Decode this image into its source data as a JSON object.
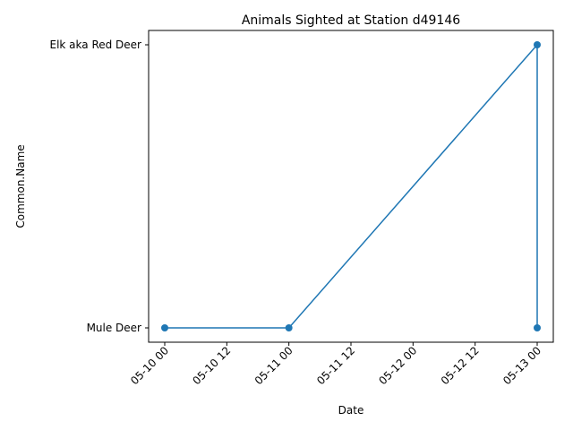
{
  "chart_data": {
    "type": "line",
    "title": "Animals Sighted at Station d49146",
    "xlabel": "Date",
    "ylabel": "Common.Name",
    "x_ticks": [
      "05-10 00",
      "05-10 12",
      "05-11 00",
      "05-11 12",
      "05-12 00",
      "05-12 12",
      "05-13 00"
    ],
    "y_categories": [
      "Mule Deer",
      "Elk aka Red Deer"
    ],
    "series": [
      {
        "color": "#1f77b4",
        "marker": "circle",
        "points": [
          {
            "x": "05-10 00",
            "y": "Mule Deer"
          },
          {
            "x": "05-11 00",
            "y": "Mule Deer"
          },
          {
            "x": "05-13 00",
            "y": "Elk aka Red Deer"
          },
          {
            "x": "05-13 00",
            "y": "Mule Deer"
          }
        ]
      }
    ],
    "x_tick_rotation_deg": 45,
    "grid": false,
    "legend": "none"
  }
}
